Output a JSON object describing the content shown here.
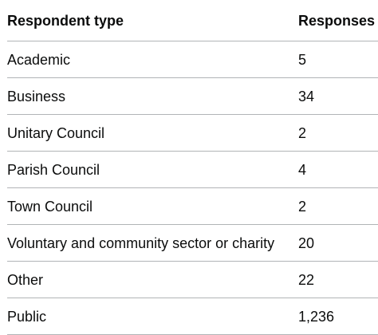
{
  "table": {
    "headers": {
      "respondent_type": "Respondent type",
      "responses": "Responses"
    },
    "rows": [
      {
        "type": "Academic",
        "responses": "5"
      },
      {
        "type": "Business",
        "responses": "34"
      },
      {
        "type": "Unitary Council",
        "responses": "2"
      },
      {
        "type": "Parish Council",
        "responses": "4"
      },
      {
        "type": "Town Council",
        "responses": "2"
      },
      {
        "type": "Voluntary and community sector or charity",
        "responses": "20"
      },
      {
        "type": "Other",
        "responses": "22"
      },
      {
        "type": "Public",
        "responses": "1,236"
      }
    ]
  }
}
